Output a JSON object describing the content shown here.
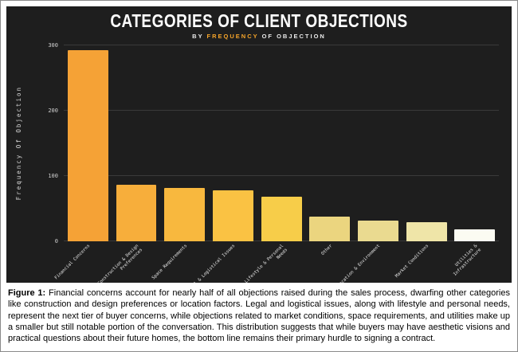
{
  "figure": {
    "title": "Categories of Client Objections",
    "subtitle_prefix": "By ",
    "subtitle_highlight": "Frequency",
    "subtitle_suffix": " of Objection"
  },
  "chart_data": {
    "type": "bar",
    "title": "Categories of Client Objections",
    "subtitle": "By Frequency of Objection",
    "xlabel": "",
    "ylabel": "Frequency Of Objection",
    "ylim": [
      0,
      300
    ],
    "yticks": [
      0,
      100,
      200,
      300
    ],
    "grid": true,
    "legend": false,
    "background": "#1e1e1e",
    "categories": [
      "Financial Concerns",
      "Construction & Design Preferences",
      "Space Requirements",
      "Legal & Logistical Issues",
      "Lifestyle & Personal Needs",
      "Other",
      "Location & Environment",
      "Market Conditions",
      "Utilities & Infrastructure"
    ],
    "values": [
      293,
      86,
      82,
      78,
      68,
      38,
      32,
      29,
      18
    ],
    "bar_colors": [
      "#f5a236",
      "#f7ae3b",
      "#f8b83e",
      "#fac243",
      "#f7cd49",
      "#ebd57f",
      "#eada90",
      "#efe5a8",
      "#fbfbf2"
    ],
    "accent_color": "#f5a42a"
  },
  "caption": {
    "label": "Figure 1:",
    "text": " Financial concerns account for nearly half of all objections raised during the sales process, dwarfing other categories like construction and design preferences or location factors. Legal and logistical issues, along with lifestyle and personal needs, represent the next tier of buyer concerns, while objections related to market conditions, space requirements, and utilities make up a smaller but still notable portion of the conversation. This distribution suggests that while buyers may have aesthetic visions and practical questions about their future homes, the bottom line remains their primary hurdle to signing a contract."
  }
}
